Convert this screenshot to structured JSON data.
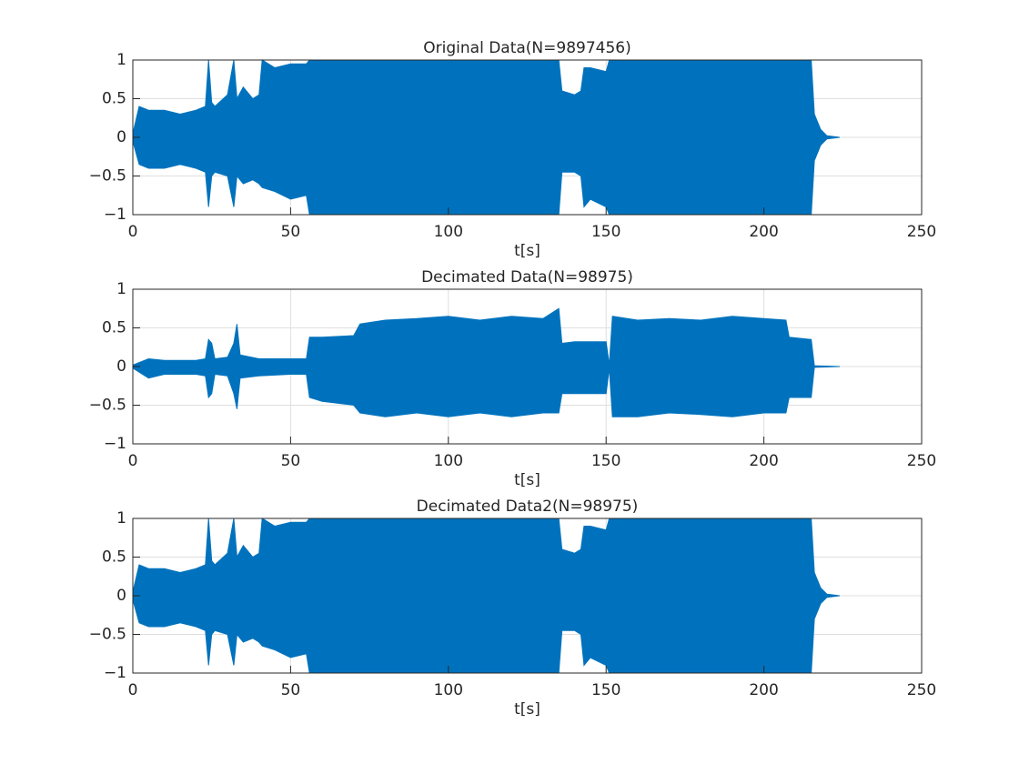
{
  "chart_data": [
    {
      "type": "area",
      "title": "Original Data(N=9897456)",
      "xlabel": "t[s]",
      "color": "#0072bd",
      "grid": true,
      "xlim": [
        0,
        250
      ],
      "ylim": [
        -1,
        1
      ],
      "xticks": [
        0,
        50,
        100,
        150,
        200,
        250
      ],
      "yticks": [
        {
          "value": -1,
          "label": "−1"
        },
        {
          "value": -0.5,
          "label": "−0.5"
        },
        0,
        0.5,
        1
      ],
      "x": [
        0,
        2,
        5,
        10,
        15,
        20,
        23,
        24,
        25,
        26,
        30,
        32,
        33,
        35,
        38,
        40,
        41,
        45,
        50,
        55,
        56,
        60,
        70,
        80,
        90,
        100,
        110,
        120,
        130,
        135,
        136,
        140,
        142,
        143,
        145,
        150,
        151,
        160,
        170,
        180,
        190,
        200,
        210,
        215,
        216,
        218,
        220,
        224
      ],
      "high": [
        0.05,
        0.4,
        0.35,
        0.35,
        0.3,
        0.35,
        0.4,
        1,
        0.45,
        0.4,
        0.55,
        1,
        0.5,
        0.65,
        0.5,
        0.55,
        1,
        0.9,
        0.95,
        0.95,
        1,
        1,
        1,
        1,
        1,
        1,
        1,
        1,
        1,
        1,
        0.6,
        0.55,
        0.6,
        0.9,
        0.9,
        0.85,
        1,
        1,
        1,
        1,
        1,
        1,
        1,
        1,
        0.3,
        0.1,
        0.02,
        0
      ],
      "low": [
        -0.05,
        -0.35,
        -0.4,
        -0.4,
        -0.35,
        -0.4,
        -0.45,
        -0.9,
        -0.5,
        -0.45,
        -0.5,
        -0.9,
        -0.5,
        -0.6,
        -0.55,
        -0.6,
        -0.65,
        -0.7,
        -0.8,
        -0.75,
        -1,
        -1,
        -1,
        -1,
        -1,
        -1,
        -1,
        -1,
        -1,
        -1,
        -0.45,
        -0.45,
        -0.5,
        -0.9,
        -0.8,
        -0.9,
        -1,
        -1,
        -1,
        -1,
        -1,
        -1,
        -1,
        -1,
        -0.3,
        -0.1,
        -0.02,
        0
      ]
    },
    {
      "type": "area",
      "title": "Decimated Data(N=98975)",
      "xlabel": "t[s]",
      "color": "#0072bd",
      "grid": true,
      "xlim": [
        0,
        250
      ],
      "ylim": [
        -1,
        1
      ],
      "xticks": [
        0,
        50,
        100,
        150,
        200,
        250
      ],
      "yticks": [
        {
          "value": -1,
          "label": "−1"
        },
        {
          "value": -0.5,
          "label": "−0.5"
        },
        0,
        0.5,
        1
      ],
      "x": [
        0,
        5,
        10,
        20,
        23,
        24,
        25,
        26,
        30,
        32,
        33,
        34,
        40,
        50,
        55,
        56,
        60,
        70,
        72,
        80,
        90,
        100,
        110,
        120,
        130,
        135,
        136,
        140,
        150,
        151,
        152,
        160,
        170,
        180,
        190,
        200,
        207,
        208,
        215,
        216,
        224
      ],
      "high": [
        0.02,
        0.1,
        0.08,
        0.08,
        0.1,
        0.35,
        0.3,
        0.1,
        0.12,
        0.3,
        0.55,
        0.15,
        0.1,
        0.1,
        0.1,
        0.38,
        0.38,
        0.4,
        0.55,
        0.6,
        0.62,
        0.65,
        0.6,
        0.65,
        0.62,
        0.75,
        0.3,
        0.32,
        0.32,
        0.02,
        0.65,
        0.6,
        0.62,
        0.6,
        0.65,
        0.62,
        0.6,
        0.38,
        0.35,
        0.01,
        0
      ],
      "low": [
        -0.02,
        -0.15,
        -0.1,
        -0.1,
        -0.12,
        -0.4,
        -0.35,
        -0.1,
        -0.12,
        -0.35,
        -0.55,
        -0.15,
        -0.12,
        -0.1,
        -0.1,
        -0.4,
        -0.45,
        -0.5,
        -0.6,
        -0.65,
        -0.6,
        -0.65,
        -0.6,
        -0.65,
        -0.6,
        -0.6,
        -0.35,
        -0.35,
        -0.35,
        -0.02,
        -0.65,
        -0.65,
        -0.6,
        -0.62,
        -0.65,
        -0.6,
        -0.6,
        -0.4,
        -0.4,
        -0.01,
        0
      ]
    },
    {
      "type": "area",
      "title": "Decimated Data2(N=98975)",
      "xlabel": "t[s]",
      "color": "#0072bd",
      "grid": true,
      "xlim": [
        0,
        250
      ],
      "ylim": [
        -1,
        1
      ],
      "xticks": [
        0,
        50,
        100,
        150,
        200,
        250
      ],
      "yticks": [
        {
          "value": -1,
          "label": "−1"
        },
        {
          "value": -0.5,
          "label": "−0.5"
        },
        0,
        0.5,
        1
      ],
      "x": [
        0,
        2,
        5,
        10,
        15,
        20,
        23,
        24,
        25,
        26,
        30,
        32,
        33,
        35,
        38,
        40,
        41,
        45,
        50,
        55,
        56,
        60,
        70,
        80,
        90,
        100,
        110,
        120,
        130,
        135,
        136,
        140,
        142,
        143,
        145,
        150,
        151,
        160,
        170,
        180,
        190,
        200,
        210,
        215,
        216,
        218,
        220,
        224
      ],
      "high": [
        0.05,
        0.4,
        0.35,
        0.35,
        0.3,
        0.35,
        0.4,
        1,
        0.45,
        0.4,
        0.55,
        1,
        0.5,
        0.65,
        0.5,
        0.55,
        1,
        0.9,
        0.95,
        0.95,
        1,
        1,
        1,
        1,
        1,
        1,
        1,
        1,
        1,
        1,
        0.6,
        0.55,
        0.6,
        0.9,
        0.9,
        0.85,
        1,
        1,
        1,
        1,
        1,
        1,
        1,
        1,
        0.3,
        0.1,
        0.02,
        0
      ],
      "low": [
        -0.05,
        -0.35,
        -0.4,
        -0.4,
        -0.35,
        -0.4,
        -0.45,
        -0.9,
        -0.5,
        -0.45,
        -0.5,
        -0.9,
        -0.5,
        -0.6,
        -0.55,
        -0.6,
        -0.65,
        -0.7,
        -0.8,
        -0.75,
        -1,
        -1,
        -1,
        -1,
        -1,
        -1,
        -1,
        -1,
        -1,
        -1,
        -0.45,
        -0.45,
        -0.5,
        -0.9,
        -0.8,
        -0.9,
        -1,
        -1,
        -1,
        -1,
        -1,
        -1,
        -1,
        -1,
        -0.3,
        -0.1,
        -0.02,
        0
      ]
    }
  ]
}
